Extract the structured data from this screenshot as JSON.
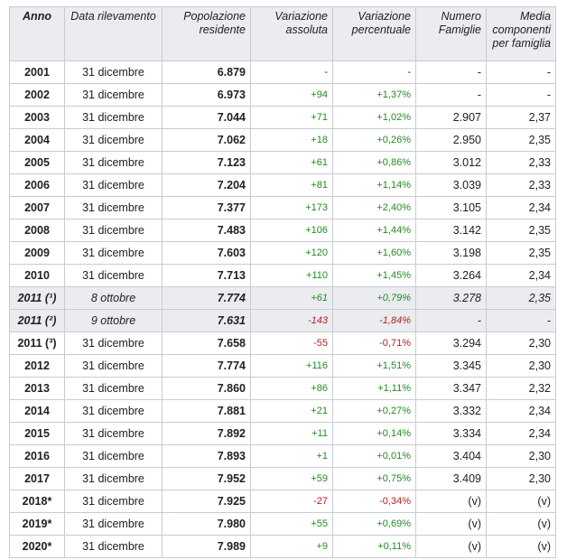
{
  "headers": [
    "Anno",
    "Data rilevamento",
    "Popolazione residente",
    "Variazione assoluta",
    "Variazione percentuale",
    "Numero Famiglie",
    "Media componenti per famiglia"
  ],
  "rows": [
    {
      "anno": "2001",
      "data": "31 dicembre",
      "pop": "6.879",
      "var": "-",
      "pct": "-",
      "fam": "-",
      "media": "-",
      "sign": "neu"
    },
    {
      "anno": "2002",
      "data": "31 dicembre",
      "pop": "6.973",
      "var": "+94",
      "pct": "+1,37%",
      "fam": "-",
      "media": "-",
      "sign": "pos"
    },
    {
      "anno": "2003",
      "data": "31 dicembre",
      "pop": "7.044",
      "var": "+71",
      "pct": "+1,02%",
      "fam": "2.907",
      "media": "2,37",
      "sign": "pos"
    },
    {
      "anno": "2004",
      "data": "31 dicembre",
      "pop": "7.062",
      "var": "+18",
      "pct": "+0,26%",
      "fam": "2.950",
      "media": "2,35",
      "sign": "pos"
    },
    {
      "anno": "2005",
      "data": "31 dicembre",
      "pop": "7.123",
      "var": "+61",
      "pct": "+0,86%",
      "fam": "3.012",
      "media": "2,33",
      "sign": "pos"
    },
    {
      "anno": "2006",
      "data": "31 dicembre",
      "pop": "7.204",
      "var": "+81",
      "pct": "+1,14%",
      "fam": "3.039",
      "media": "2,33",
      "sign": "pos"
    },
    {
      "anno": "2007",
      "data": "31 dicembre",
      "pop": "7.377",
      "var": "+173",
      "pct": "+2,40%",
      "fam": "3.105",
      "media": "2,34",
      "sign": "pos"
    },
    {
      "anno": "2008",
      "data": "31 dicembre",
      "pop": "7.483",
      "var": "+106",
      "pct": "+1,44%",
      "fam": "3.142",
      "media": "2,35",
      "sign": "pos"
    },
    {
      "anno": "2009",
      "data": "31 dicembre",
      "pop": "7.603",
      "var": "+120",
      "pct": "+1,60%",
      "fam": "3.198",
      "media": "2,35",
      "sign": "pos"
    },
    {
      "anno": "2010",
      "data": "31 dicembre",
      "pop": "7.713",
      "var": "+110",
      "pct": "+1,45%",
      "fam": "3.264",
      "media": "2,34",
      "sign": "pos"
    },
    {
      "anno": "2011 (¹)",
      "data": "8 ottobre",
      "pop": "7.774",
      "var": "+61",
      "pct": "+0,79%",
      "fam": "3.278",
      "media": "2,35",
      "sign": "pos",
      "census": true
    },
    {
      "anno": "2011 (²)",
      "data": "9 ottobre",
      "pop": "7.631",
      "var": "-143",
      "pct": "-1,84%",
      "fam": "-",
      "media": "-",
      "sign": "neg",
      "census": true
    },
    {
      "anno": "2011 (³)",
      "data": "31 dicembre",
      "pop": "7.658",
      "var": "-55",
      "pct": "-0,71%",
      "fam": "3.294",
      "media": "2,30",
      "sign": "neg"
    },
    {
      "anno": "2012",
      "data": "31 dicembre",
      "pop": "7.774",
      "var": "+116",
      "pct": "+1,51%",
      "fam": "3.345",
      "media": "2,30",
      "sign": "pos"
    },
    {
      "anno": "2013",
      "data": "31 dicembre",
      "pop": "7.860",
      "var": "+86",
      "pct": "+1,11%",
      "fam": "3.347",
      "media": "2,32",
      "sign": "pos"
    },
    {
      "anno": "2014",
      "data": "31 dicembre",
      "pop": "7.881",
      "var": "+21",
      "pct": "+0,27%",
      "fam": "3.332",
      "media": "2,34",
      "sign": "pos"
    },
    {
      "anno": "2015",
      "data": "31 dicembre",
      "pop": "7.892",
      "var": "+11",
      "pct": "+0,14%",
      "fam": "3.334",
      "media": "2,34",
      "sign": "pos"
    },
    {
      "anno": "2016",
      "data": "31 dicembre",
      "pop": "7.893",
      "var": "+1",
      "pct": "+0,01%",
      "fam": "3.404",
      "media": "2,30",
      "sign": "pos"
    },
    {
      "anno": "2017",
      "data": "31 dicembre",
      "pop": "7.952",
      "var": "+59",
      "pct": "+0,75%",
      "fam": "3.409",
      "media": "2,30",
      "sign": "pos"
    },
    {
      "anno": "2018*",
      "data": "31 dicembre",
      "pop": "7.925",
      "var": "-27",
      "pct": "-0,34%",
      "fam": "(v)",
      "media": "(v)",
      "sign": "neg"
    },
    {
      "anno": "2019*",
      "data": "31 dicembre",
      "pop": "7.980",
      "var": "+55",
      "pct": "+0,69%",
      "fam": "(v)",
      "media": "(v)",
      "sign": "pos"
    },
    {
      "anno": "2020*",
      "data": "31 dicembre",
      "pop": "7.989",
      "var": "+9",
      "pct": "+0,11%",
      "fam": "(v)",
      "media": "(v)",
      "sign": "pos"
    }
  ],
  "colors": {
    "positive": "#228b22",
    "negative": "#b22222",
    "header_bg": "#eaecf0",
    "border": "#c8ccd1"
  }
}
